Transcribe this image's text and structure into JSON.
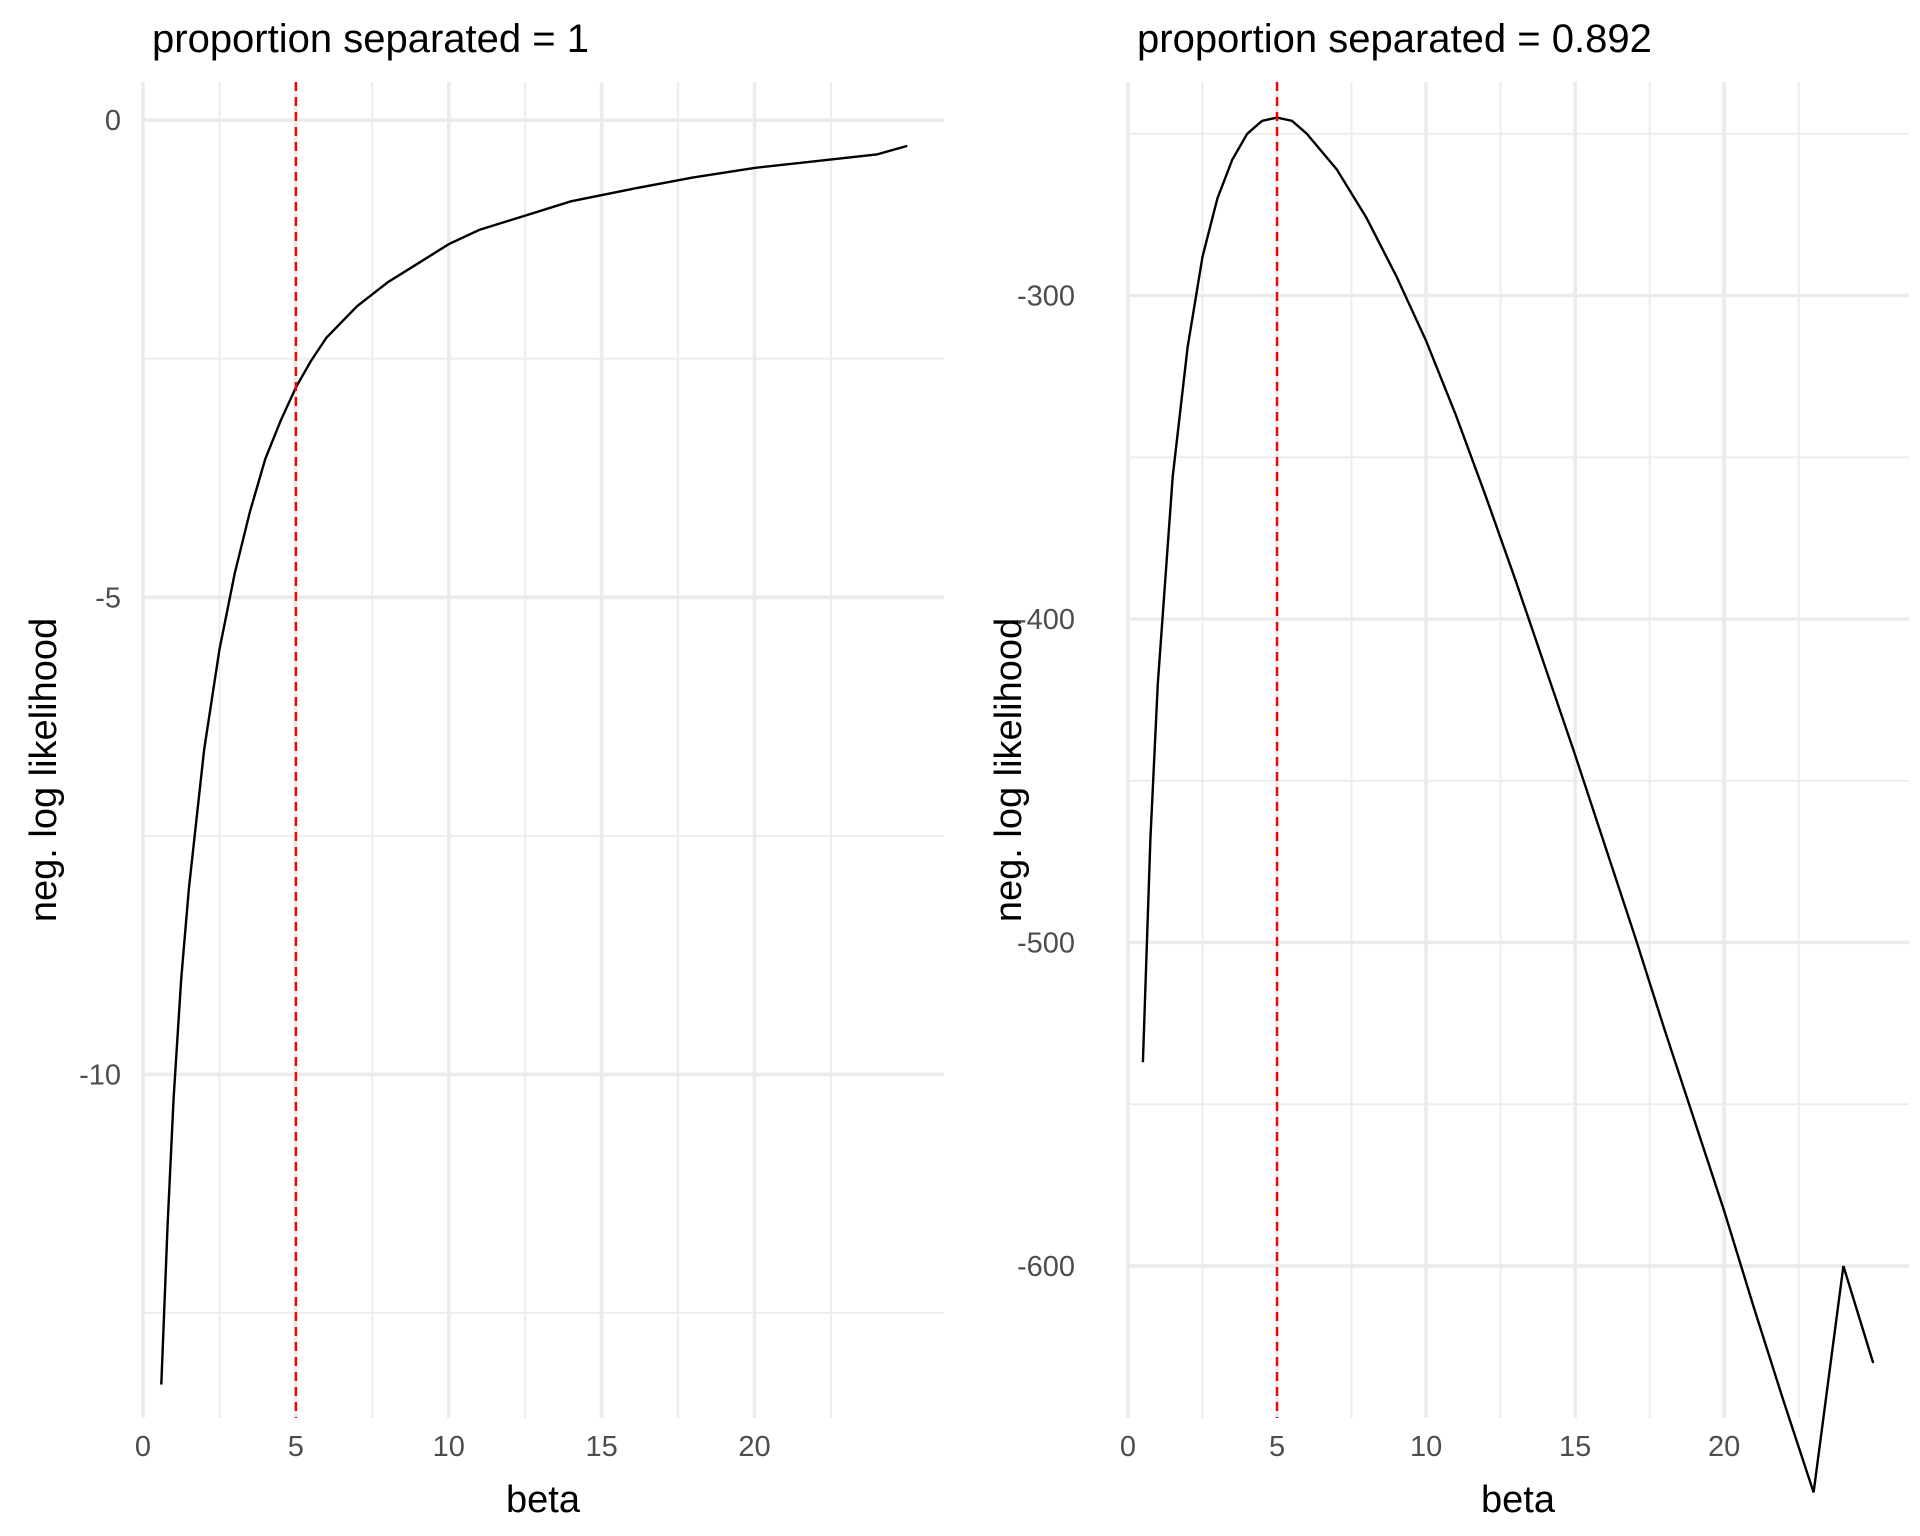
{
  "chart_data": [
    {
      "type": "line",
      "title": "proportion separated = 1",
      "xlabel": "beta",
      "ylabel": "neg. log likelihood",
      "xlim": [
        0,
        26.2
      ],
      "ylim": [
        -13.6,
        0.4
      ],
      "x_ticks": [
        0,
        5,
        10,
        15,
        20
      ],
      "x_tick_labels": [
        "0",
        "5",
        "10",
        "15",
        "20"
      ],
      "y_ticks": [
        -10,
        -5,
        0
      ],
      "y_tick_labels": [
        "-10",
        "-5",
        "0"
      ],
      "grid": true,
      "reference_line": {
        "x": 5,
        "color": "#ff0000",
        "style": "dashed"
      },
      "series": [
        {
          "color": "#000000",
          "x": [
            0.6,
            0.8,
            1.0,
            1.25,
            1.5,
            2.0,
            2.5,
            3.0,
            3.5,
            4.0,
            4.5,
            5.0,
            5.5,
            6.0,
            7.0,
            8.0,
            9.0,
            10.0,
            11.0,
            12.0,
            14.0,
            16.0,
            18.0,
            20.0,
            22.0,
            24.0,
            25.0
          ],
          "y": [
            -13.25,
            -11.6,
            -10.25,
            -9.0,
            -8.05,
            -6.6,
            -5.55,
            -4.75,
            -4.1,
            -3.55,
            -3.15,
            -2.8,
            -2.52,
            -2.28,
            -1.95,
            -1.7,
            -1.5,
            -1.3,
            -1.15,
            -1.05,
            -0.85,
            -0.72,
            -0.6,
            -0.5,
            -0.43,
            -0.36,
            -0.27
          ]
        }
      ]
    },
    {
      "type": "line",
      "title": "proportion separated = 0.892",
      "xlabel": "beta",
      "ylabel": "neg. log likelihood",
      "xlim": [
        0,
        26.2
      ],
      "ylim": [
        -647,
        -234
      ],
      "x_ticks": [
        0,
        5,
        10,
        15,
        20
      ],
      "x_tick_labels": [
        "0",
        "5",
        "10",
        "15",
        "20"
      ],
      "y_ticks": [
        -600,
        -500,
        -400,
        -300
      ],
      "y_tick_labels": [
        "-600",
        "-500",
        "-400",
        "-300"
      ],
      "grid": true,
      "reference_line": {
        "x": 5,
        "color": "#ff0000",
        "style": "dashed"
      },
      "series": [
        {
          "color": "#000000",
          "x": [
            0.5,
            0.75,
            1.0,
            1.5,
            2.0,
            2.5,
            3.0,
            3.5,
            4.0,
            4.5,
            5.0,
            5.5,
            6.0,
            7.0,
            8.0,
            9.0,
            10.0,
            11.0,
            12.0,
            13.0,
            14.0,
            15.0,
            16.0,
            17.0,
            18.0,
            19.0,
            20.0,
            21.0,
            22.0,
            23.0,
            24.0,
            25.0
          ],
          "y": [
            -537,
            -468,
            -420,
            -356,
            -316,
            -288,
            -270,
            -258,
            -250,
            -246,
            -245,
            -246,
            -250,
            -261,
            -276,
            -294,
            -314,
            -337,
            -362,
            -388,
            -415,
            -442,
            -470,
            -498,
            -527,
            -555,
            -583,
            -613,
            -642,
            -670,
            -600,
            -630
          ]
        }
      ]
    }
  ]
}
